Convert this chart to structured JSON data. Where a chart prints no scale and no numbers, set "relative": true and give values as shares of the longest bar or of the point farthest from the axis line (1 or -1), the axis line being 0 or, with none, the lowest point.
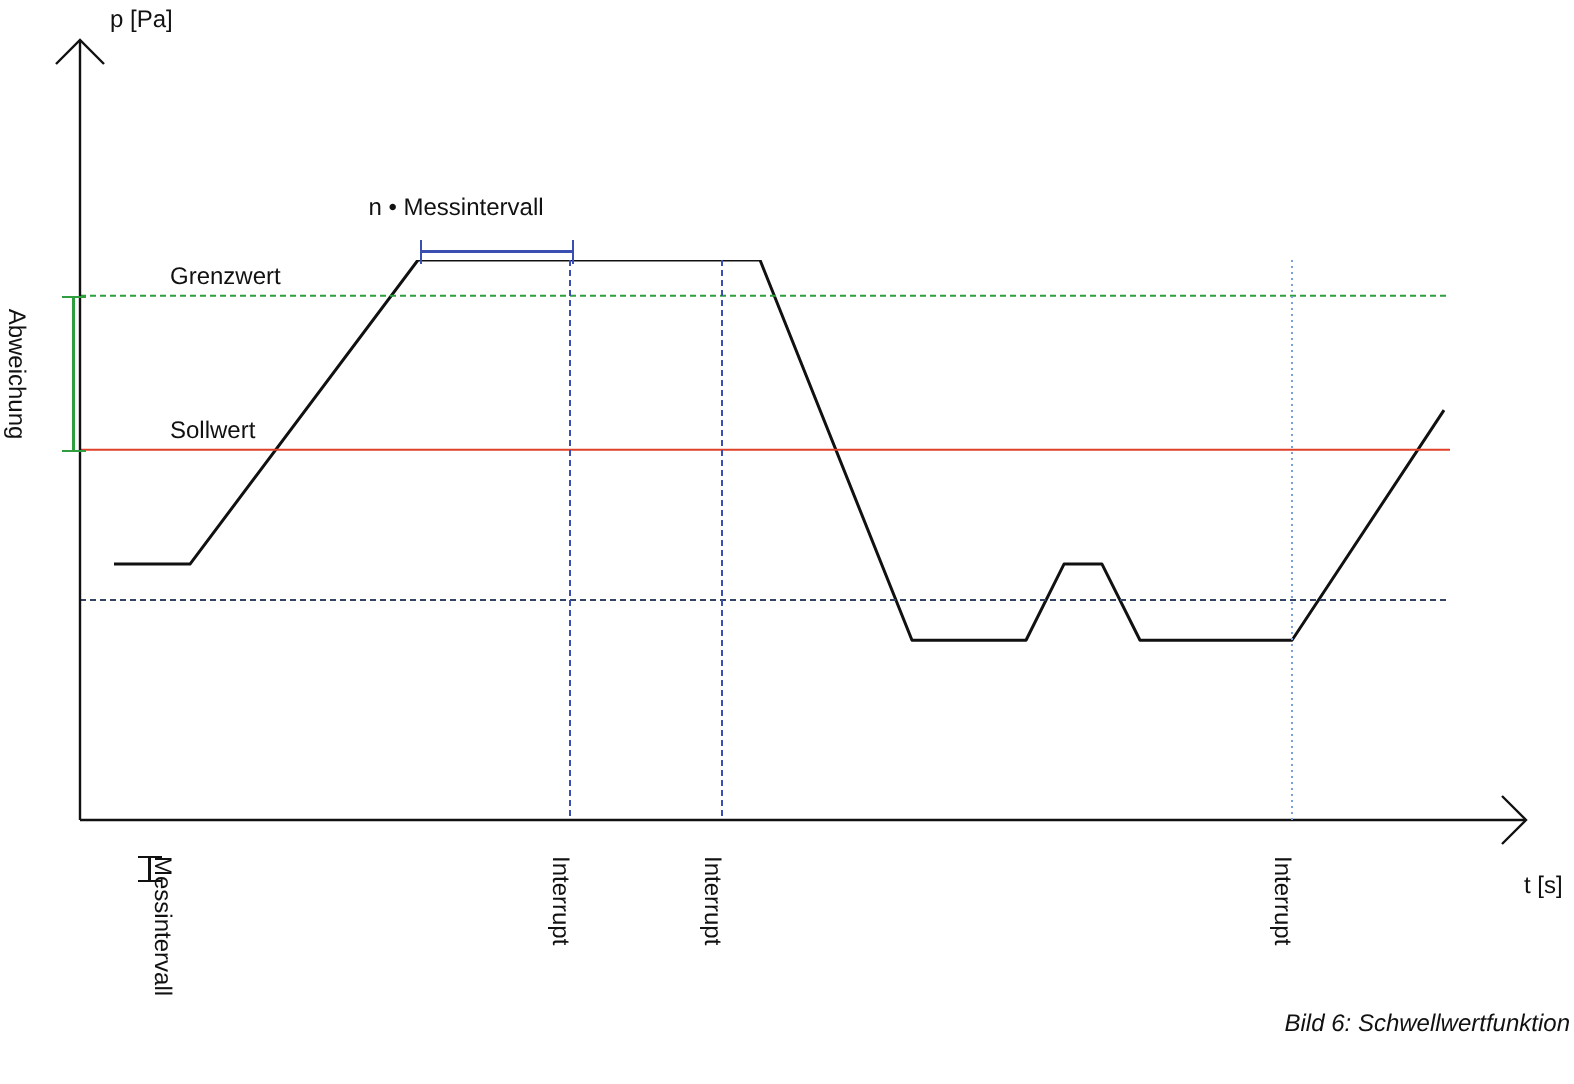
{
  "chart_data": {
    "type": "line",
    "relative": true,
    "xlabel": "t [s]",
    "grid": false,
    "legend": false,
    "marker": "none",
    "line_style": "solid",
    "categories": [
      null,
      null,
      null,
      null,
      null,
      null,
      null,
      null,
      null,
      null,
      null,
      null,
      null,
      null,
      null,
      null,
      null,
      null,
      null,
      null,
      null,
      null,
      null,
      null,
      null,
      null,
      null,
      null,
      null,
      null,
      null,
      null,
      null,
      null,
      null,
      null
    ],
    "series": [
      {
        "color": "#111111",
        "values": [
          0.457,
          null,
          0.457,
          null,
          null,
          null,
          null,
          null,
          1,
          null,
          null,
          null,
          null,
          null,
          null,
          null,
          null,
          1,
          null,
          null,
          null,
          0.321,
          null,
          null,
          0.321,
          0.457,
          0.457,
          0.321,
          null,
          null,
          null,
          0.321,
          null,
          null,
          null,
          0.732
        ]
      }
    ],
    "ref_lines": [
      {
        "axis": "y",
        "value": 0.936,
        "label": "Grenzwert",
        "color": "#2e9e3e",
        "line_style": "dashed"
      },
      {
        "axis": "y",
        "value": 0.661,
        "label": "Sollwert",
        "color": "#e0402a",
        "line_style": "solid"
      },
      {
        "axis": "y",
        "value": 0.393,
        "color": "#334466",
        "line_style": "dashed"
      }
    ],
    "annotations": [
      "n • Messintervall",
      "Abweichung",
      "Messintervall",
      "Bild 6: Schwellwertfunktion",
      "p [Pa]",
      "Interrupt",
      "Interrupt",
      "Interrupt"
    ]
  }
}
